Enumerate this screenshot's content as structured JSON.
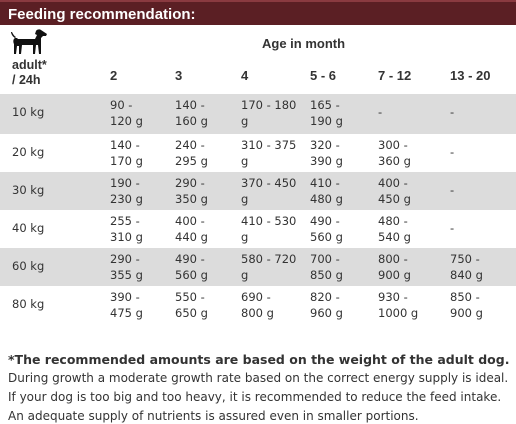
{
  "title": "Feeding recommendation:",
  "icon": "dog-silhouette-icon",
  "header": {
    "row_label": "adult*\n/ 24h",
    "age_caption": "Age in month",
    "age_columns": [
      "2",
      "3",
      "4",
      "5 - 6",
      "7 - 12",
      "13 - 20"
    ]
  },
  "rows": [
    {
      "weight": "10 kg",
      "values": [
        "90 -\n120 g",
        "140 -\n160 g",
        "170 - 180\ng",
        "165 -\n190 g",
        "-",
        "-"
      ]
    },
    {
      "weight": "20 kg",
      "values": [
        "140 -\n170 g",
        "240 -\n295 g",
        "310 - 375\ng",
        "320 -\n390 g",
        "300 -\n360 g",
        "-"
      ]
    },
    {
      "weight": "30 kg",
      "values": [
        "190 -\n230 g",
        "290 -\n350 g",
        "370 - 450\ng",
        "410 -\n480 g",
        "400 -\n450 g",
        "-"
      ]
    },
    {
      "weight": "40 kg",
      "values": [
        "255 -\n310 g",
        "400 -\n440 g",
        "410 - 530\ng",
        "490 -\n560 g",
        "480 -\n540 g",
        "-"
      ]
    },
    {
      "weight": "60 kg",
      "values": [
        "290 -\n355 g",
        "490 -\n560 g",
        "580 - 720\ng",
        "700 -\n850 g",
        "800 -\n900 g",
        "750 -\n840 g"
      ]
    },
    {
      "weight": "80 kg",
      "values": [
        "390 -\n475 g",
        "550 -\n650 g",
        "690 -\n800 g",
        "820 -\n960 g",
        "930 -\n1000 g",
        "850 -\n900 g"
      ]
    }
  ],
  "footnote": {
    "bold_line": "*The recommended amounts are based on the weight of the adult dog.",
    "lines": [
      "During growth a moderate growth rate based on the correct energy supply is ideal.",
      "If your dog is too big and too heavy, it is recommended to reduce the feed intake.",
      "An adequate supply of nutrients is assured even in smaller portions."
    ]
  }
}
